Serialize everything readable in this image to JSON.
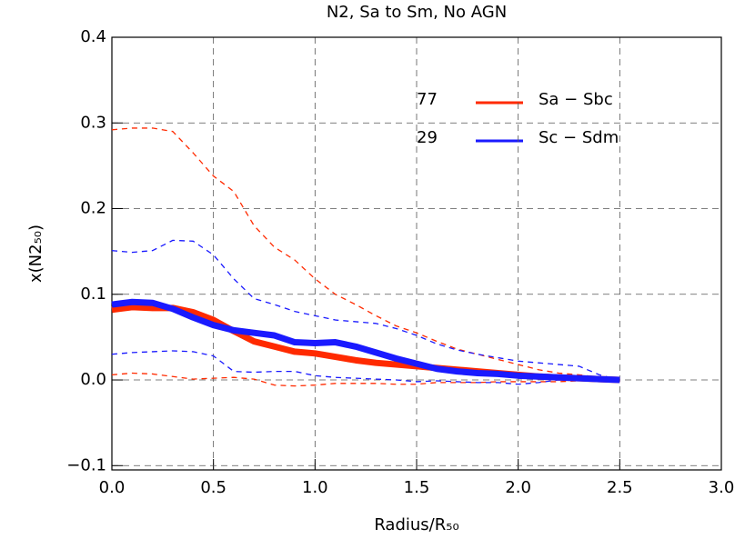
{
  "chart_data": {
    "type": "line",
    "title": "N2, Sa to Sm, No AGN",
    "x_label": "Radius/R₅₀",
    "y_label": "x(N2₅₀)",
    "xlim": [
      0,
      3
    ],
    "ylim": [
      -0.105,
      0.4
    ],
    "xticks": [
      {
        "value": 0,
        "label": "0.0"
      },
      0.5,
      {
        "value": 1,
        "label": "1.0"
      },
      1.5,
      {
        "value": 2,
        "label": "2.0"
      },
      2.5,
      {
        "value": 3,
        "label": "3.0"
      }
    ],
    "yticks": [
      {
        "value": -0.1,
        "label": "−0.1"
      },
      {
        "value": 0,
        "label": "0.0"
      },
      0.1,
      0.2,
      0.3,
      0.4
    ],
    "grid": true,
    "x": [
      0,
      0.1,
      0.2,
      0.3,
      0.4,
      0.5,
      0.6,
      0.7,
      0.8,
      0.9,
      1.0,
      1.1,
      1.2,
      1.3,
      1.4,
      1.5,
      1.6,
      1.7,
      1.8,
      1.9,
      2.0,
      2.1,
      2.2,
      2.3,
      2.4,
      2.5
    ],
    "annotations": [
      "77",
      "29"
    ],
    "series": [
      {
        "name": "Sa − Sbc",
        "color": "#ff2a00",
        "style": "solid",
        "width": 7,
        "values": [
          0.082,
          0.085,
          0.084,
          0.084,
          0.079,
          0.07,
          0.057,
          0.045,
          0.039,
          0.033,
          0.031,
          0.027,
          0.023,
          0.02,
          0.018,
          0.016,
          0.014,
          0.012,
          0.01,
          0.008,
          0.006,
          0.004,
          0.003,
          0.002,
          0.001,
          0.0
        ]
      },
      {
        "name": "Sc − Sdm",
        "color": "#1a1aff",
        "style": "solid",
        "width": 7,
        "values": [
          0.088,
          0.091,
          0.09,
          0.083,
          0.073,
          0.064,
          0.058,
          0.055,
          0.052,
          0.044,
          0.043,
          0.044,
          0.039,
          0.032,
          0.025,
          0.019,
          0.013,
          0.01,
          0.008,
          0.007,
          0.005,
          0.004,
          0.003,
          0.002,
          0.001,
          0.0
        ]
      },
      {
        "color": "#ff2a00",
        "style": "dashed",
        "width": 1.3,
        "values": [
          0.292,
          0.294,
          0.294,
          0.29,
          0.265,
          0.238,
          0.22,
          0.18,
          0.155,
          0.14,
          0.118,
          0.1,
          0.088,
          0.075,
          0.063,
          0.055,
          0.045,
          0.036,
          0.03,
          0.024,
          0.018,
          0.012,
          0.008,
          0.006,
          0.003,
          0.0
        ]
      },
      {
        "color": "#ff2a00",
        "style": "dashed",
        "width": 1.3,
        "values": [
          0.006,
          0.008,
          0.007,
          0.004,
          0.001,
          0.002,
          0.003,
          0.001,
          -0.006,
          -0.007,
          -0.006,
          -0.004,
          -0.004,
          -0.004,
          -0.005,
          -0.005,
          -0.003,
          -0.003,
          -0.003,
          -0.002,
          -0.002,
          -0.002,
          -0.002,
          -0.001,
          0.0,
          0.0
        ]
      },
      {
        "color": "#1a1aff",
        "style": "dashed",
        "width": 1.3,
        "values": [
          0.151,
          0.149,
          0.151,
          0.163,
          0.162,
          0.146,
          0.118,
          0.095,
          0.088,
          0.08,
          0.075,
          0.07,
          0.068,
          0.066,
          0.06,
          0.052,
          0.042,
          0.035,
          0.03,
          0.026,
          0.022,
          0.02,
          0.018,
          0.016,
          0.006,
          0.0
        ]
      },
      {
        "color": "#1a1aff",
        "style": "dashed",
        "width": 1.3,
        "values": [
          0.03,
          0.032,
          0.033,
          0.034,
          0.033,
          0.028,
          0.01,
          0.009,
          0.01,
          0.01,
          0.005,
          0.003,
          0.002,
          0.001,
          0.0,
          -0.002,
          -0.001,
          -0.002,
          -0.003,
          -0.003,
          -0.005,
          -0.003,
          0.0,
          0.002,
          0.001,
          0.0
        ]
      }
    ]
  }
}
